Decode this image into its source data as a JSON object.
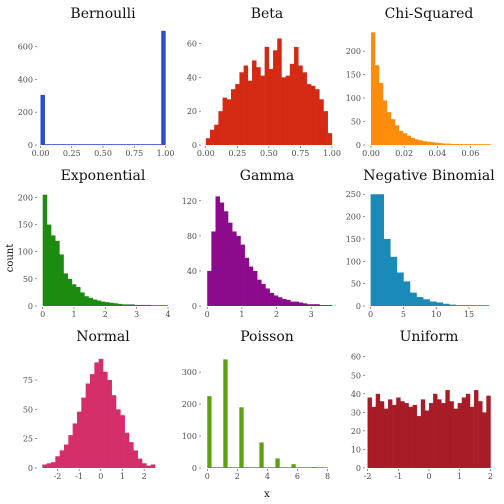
{
  "chart_data": {
    "type": "bar",
    "layout": "facet-grid 3x3",
    "xlabel": "x",
    "ylabel": "count",
    "grid": false,
    "facets": [
      {
        "title": "Bernoulli",
        "color": "#2b4fc0",
        "xlim": [
          -0.02,
          1.02
        ],
        "ylim": [
          0,
          700
        ],
        "xticks": [
          0,
          0.25,
          0.5,
          0.75,
          1
        ],
        "xtick_labels": [
          "0.00",
          "0.25",
          "0.50",
          "0.75",
          "1.00"
        ],
        "yticks": [
          0,
          200,
          400,
          600
        ],
        "ytick_labels": [
          "0",
          "200",
          "400",
          "600"
        ],
        "bin_start": 0.0,
        "bin_width": 0.0333,
        "counts": [
          305,
          0,
          0,
          0,
          0,
          0,
          0,
          0,
          0,
          0,
          0,
          0,
          0,
          0,
          0,
          0,
          0,
          0,
          0,
          0,
          0,
          0,
          0,
          0,
          0,
          0,
          0,
          0,
          0,
          695
        ]
      },
      {
        "title": "Beta",
        "color": "#d42a14",
        "xlim": [
          -0.03,
          1.0
        ],
        "ylim": [
          0,
          68
        ],
        "xticks": [
          0,
          0.25,
          0.5,
          0.75,
          1
        ],
        "xtick_labels": [
          "0.00",
          "0.25",
          "0.50",
          "0.75",
          "1.00"
        ],
        "yticks": [
          0,
          20,
          40,
          60
        ],
        "ytick_labels": [
          "0",
          "20",
          "40",
          "60"
        ],
        "bin_start": 0.0,
        "bin_width": 0.0333,
        "counts": [
          4,
          9,
          12,
          20,
          28,
          27,
          33,
          36,
          43,
          47,
          38,
          50,
          46,
          41,
          58,
          45,
          56,
          63,
          40,
          41,
          48,
          58,
          47,
          43,
          36,
          35,
          33,
          27,
          20,
          7
        ]
      },
      {
        "title": "Chi-Squared",
        "color": "#ff8c0a",
        "xlim": [
          -0.003,
          0.073
        ],
        "ylim": [
          0,
          245
        ],
        "xticks": [
          0,
          0.02,
          0.04,
          0.06
        ],
        "xtick_labels": [
          "0.00",
          "0.02",
          "0.04",
          "0.06"
        ],
        "yticks": [
          0,
          50,
          100,
          150,
          200
        ],
        "ytick_labels": [
          "0",
          "50",
          "100",
          "150",
          "200"
        ],
        "bin_start": 0.0,
        "bin_width": 0.0024,
        "counts": [
          240,
          170,
          132,
          95,
          70,
          55,
          42,
          30,
          25,
          20,
          15,
          12,
          10,
          8,
          7,
          6,
          5,
          4,
          3,
          3,
          2,
          2,
          2,
          1,
          1,
          1,
          1,
          0,
          1,
          1
        ]
      },
      {
        "title": "Exponential",
        "color": "#1b8c0f",
        "xlim": [
          -0.15,
          4.0
        ],
        "ylim": [
          0,
          210
        ],
        "xticks": [
          0,
          1,
          2,
          3,
          4
        ],
        "xtick_labels": [
          "0",
          "1",
          "2",
          "3",
          "4"
        ],
        "yticks": [
          0,
          50,
          100,
          150,
          200
        ],
        "ytick_labels": [
          "0",
          "50",
          "100",
          "150",
          "200"
        ],
        "bin_start": 0.0,
        "bin_width": 0.133,
        "counts": [
          205,
          150,
          130,
          120,
          95,
          60,
          50,
          40,
          35,
          25,
          18,
          15,
          12,
          10,
          8,
          7,
          6,
          5,
          4,
          3,
          3,
          3,
          2,
          2,
          2,
          2,
          1,
          1,
          1,
          1
        ]
      },
      {
        "title": "Gamma",
        "color": "#8c0a8c",
        "xlim": [
          -0.15,
          3.6
        ],
        "ylim": [
          0,
          130
        ],
        "xticks": [
          0,
          1,
          2,
          3
        ],
        "xtick_labels": [
          "0",
          "1",
          "2",
          "3"
        ],
        "yticks": [
          0,
          40,
          80,
          120
        ],
        "ytick_labels": [
          "0",
          "40",
          "80",
          "120"
        ],
        "bin_start": 0.0,
        "bin_width": 0.12,
        "counts": [
          40,
          85,
          125,
          118,
          108,
          95,
          85,
          80,
          70,
          55,
          45,
          40,
          30,
          25,
          20,
          15,
          12,
          10,
          8,
          7,
          5,
          5,
          4,
          3,
          2,
          2,
          2,
          1,
          1,
          1
        ]
      },
      {
        "title": "Negative Binomial",
        "color": "#1a8ab8",
        "xlim": [
          -0.7,
          18.5
        ],
        "ylim": [
          0,
          255
        ],
        "xticks": [
          0,
          5,
          10,
          15
        ],
        "xtick_labels": [
          "0",
          "5",
          "10",
          "15"
        ],
        "yticks": [
          0,
          50,
          100,
          150,
          200,
          250
        ],
        "ytick_labels": [
          "0",
          "50",
          "100",
          "150",
          "200",
          "250"
        ],
        "bin_start": 0.0,
        "bin_width": 1.0,
        "counts": [
          250,
          250,
          150,
          110,
          75,
          55,
          30,
          20,
          15,
          10,
          8,
          5,
          3,
          2,
          2,
          1,
          1,
          1
        ]
      },
      {
        "title": "Normal",
        "color": "#d42f6a",
        "xlim": [
          -2.9,
          3.1
        ],
        "ylim": [
          0,
          98
        ],
        "xticks": [
          -2,
          -1,
          0,
          1,
          2
        ],
        "xtick_labels": [
          "-2",
          "-1",
          "0",
          "1",
          "2"
        ],
        "yticks": [
          0,
          25,
          50,
          75
        ],
        "ytick_labels": [
          "0",
          "25",
          "50",
          "75"
        ],
        "bin_start": -2.7,
        "bin_width": 0.2,
        "counts": [
          3,
          4,
          5,
          10,
          15,
          20,
          28,
          38,
          48,
          60,
          72,
          80,
          90,
          93,
          82,
          75,
          62,
          50,
          45,
          30,
          22,
          15,
          8,
          4,
          2,
          3
        ]
      },
      {
        "title": "Poisson",
        "color": "#60a010",
        "xlim": [
          -0.35,
          8.3
        ],
        "ylim": [
          0,
          360
        ],
        "xticks": [
          0,
          2,
          4,
          6,
          8
        ],
        "xtick_labels": [
          "0",
          "2",
          "4",
          "6",
          "8"
        ],
        "yticks": [
          0,
          100,
          200,
          300
        ],
        "ytick_labels": [
          "0",
          "100",
          "200",
          "300"
        ],
        "bin_start": 0.0,
        "bin_width": 0.2667,
        "counts": [
          225,
          0,
          0,
          0,
          340,
          0,
          0,
          0,
          190,
          0,
          0,
          0,
          0,
          80,
          0,
          0,
          0,
          30,
          0,
          0,
          0,
          12,
          0,
          0,
          0,
          0,
          3,
          0,
          0,
          1
        ]
      },
      {
        "title": "Uniform",
        "color": "#a81c28",
        "xlim": [
          -2.05,
          2.05
        ],
        "ylim": [
          0,
          62
        ],
        "xticks": [
          -2,
          -1,
          0,
          1,
          2
        ],
        "xtick_labels": [
          "-2",
          "-1",
          "0",
          "1",
          "2"
        ],
        "yticks": [
          0,
          10,
          20,
          30,
          40,
          50,
          60
        ],
        "ytick_labels": [
          "0",
          "10",
          "20",
          "30",
          "40",
          "50",
          "60"
        ],
        "bin_start": -2.0,
        "bin_width": 0.1333,
        "counts": [
          38,
          33,
          40,
          36,
          32,
          37,
          34,
          38,
          36,
          35,
          33,
          34,
          28,
          37,
          31,
          35,
          40,
          37,
          35,
          42,
          36,
          32,
          35,
          38,
          40,
          33,
          42,
          36,
          30,
          39
        ]
      }
    ]
  }
}
